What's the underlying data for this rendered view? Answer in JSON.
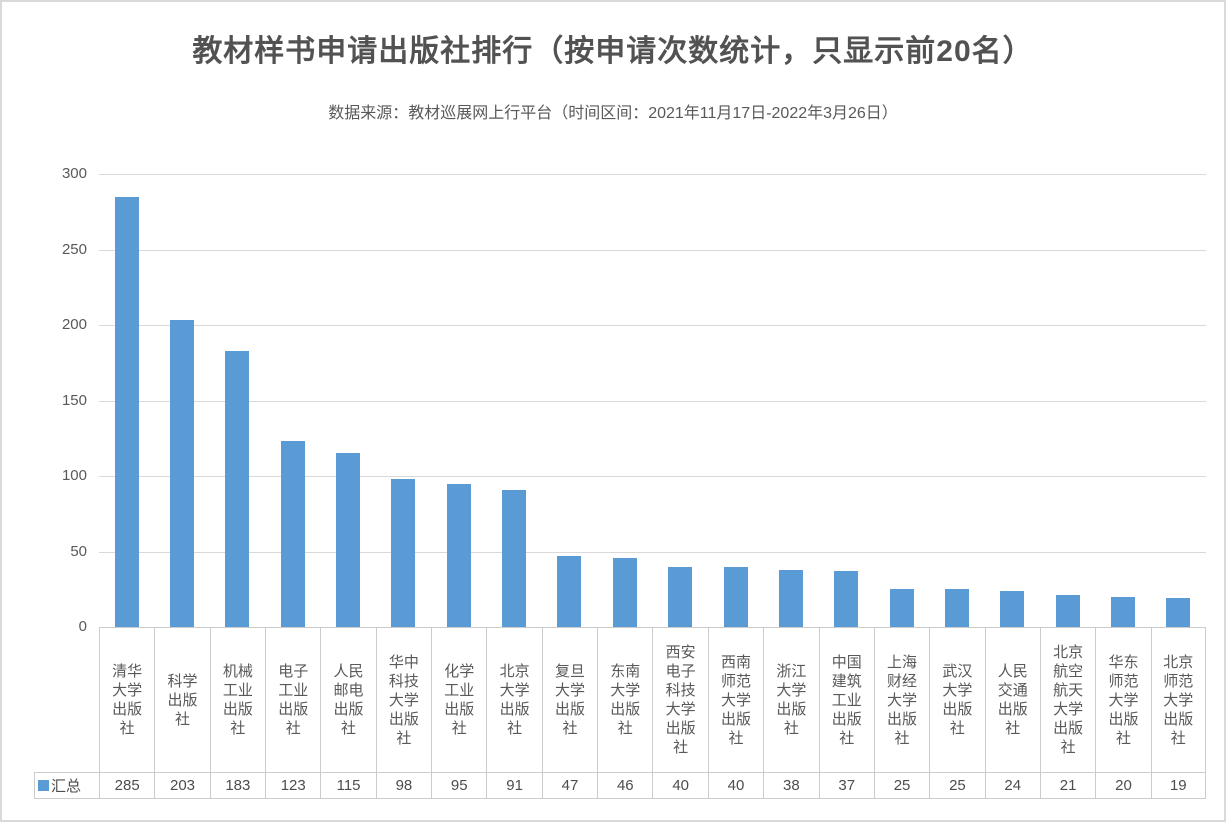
{
  "chart_data": {
    "type": "bar",
    "title": "教材样书申请出版社排行（按申请次数统计，只显示前20名）",
    "subtitle": "数据来源：教材巡展网上行平台（时间区间：2021年11月17日-2022年3月26日）",
    "categories": [
      "清华大学出版社",
      "科学出版社",
      "机械工业出版社",
      "电子工业出版社",
      "人民邮电出版社",
      "华中科技大学出版社",
      "化学工业出版社",
      "北京大学出版社",
      "复旦大学出版社",
      "东南大学出版社",
      "西安电子科技大学出版社",
      "西南师范大学出版社",
      "浙江大学出版社",
      "中国建筑工业出版社",
      "上海财经大学出版社",
      "武汉大学出版社",
      "人民交通出版社",
      "北京航空航天大学出版社",
      "华东师范大学出版社",
      "北京师范大学出版社"
    ],
    "series": [
      {
        "name": "汇总",
        "values": [
          285,
          203,
          183,
          123,
          115,
          98,
          95,
          91,
          47,
          46,
          40,
          40,
          38,
          37,
          25,
          25,
          24,
          21,
          20,
          19
        ]
      }
    ],
    "xlabel": "",
    "ylabel": "",
    "ylim": [
      0,
      300
    ],
    "yticks": [
      0,
      50,
      100,
      150,
      200,
      250,
      300
    ],
    "grid": true,
    "legend_position": "bottom-left-data-table",
    "bar_color": "#5b9bd5",
    "gridline_color": "#d9d9d9",
    "title_color": "#525252",
    "text_color": "#595959"
  },
  "legend": {
    "series_label": "汇总",
    "marker_color": "#5b9bd5"
  }
}
